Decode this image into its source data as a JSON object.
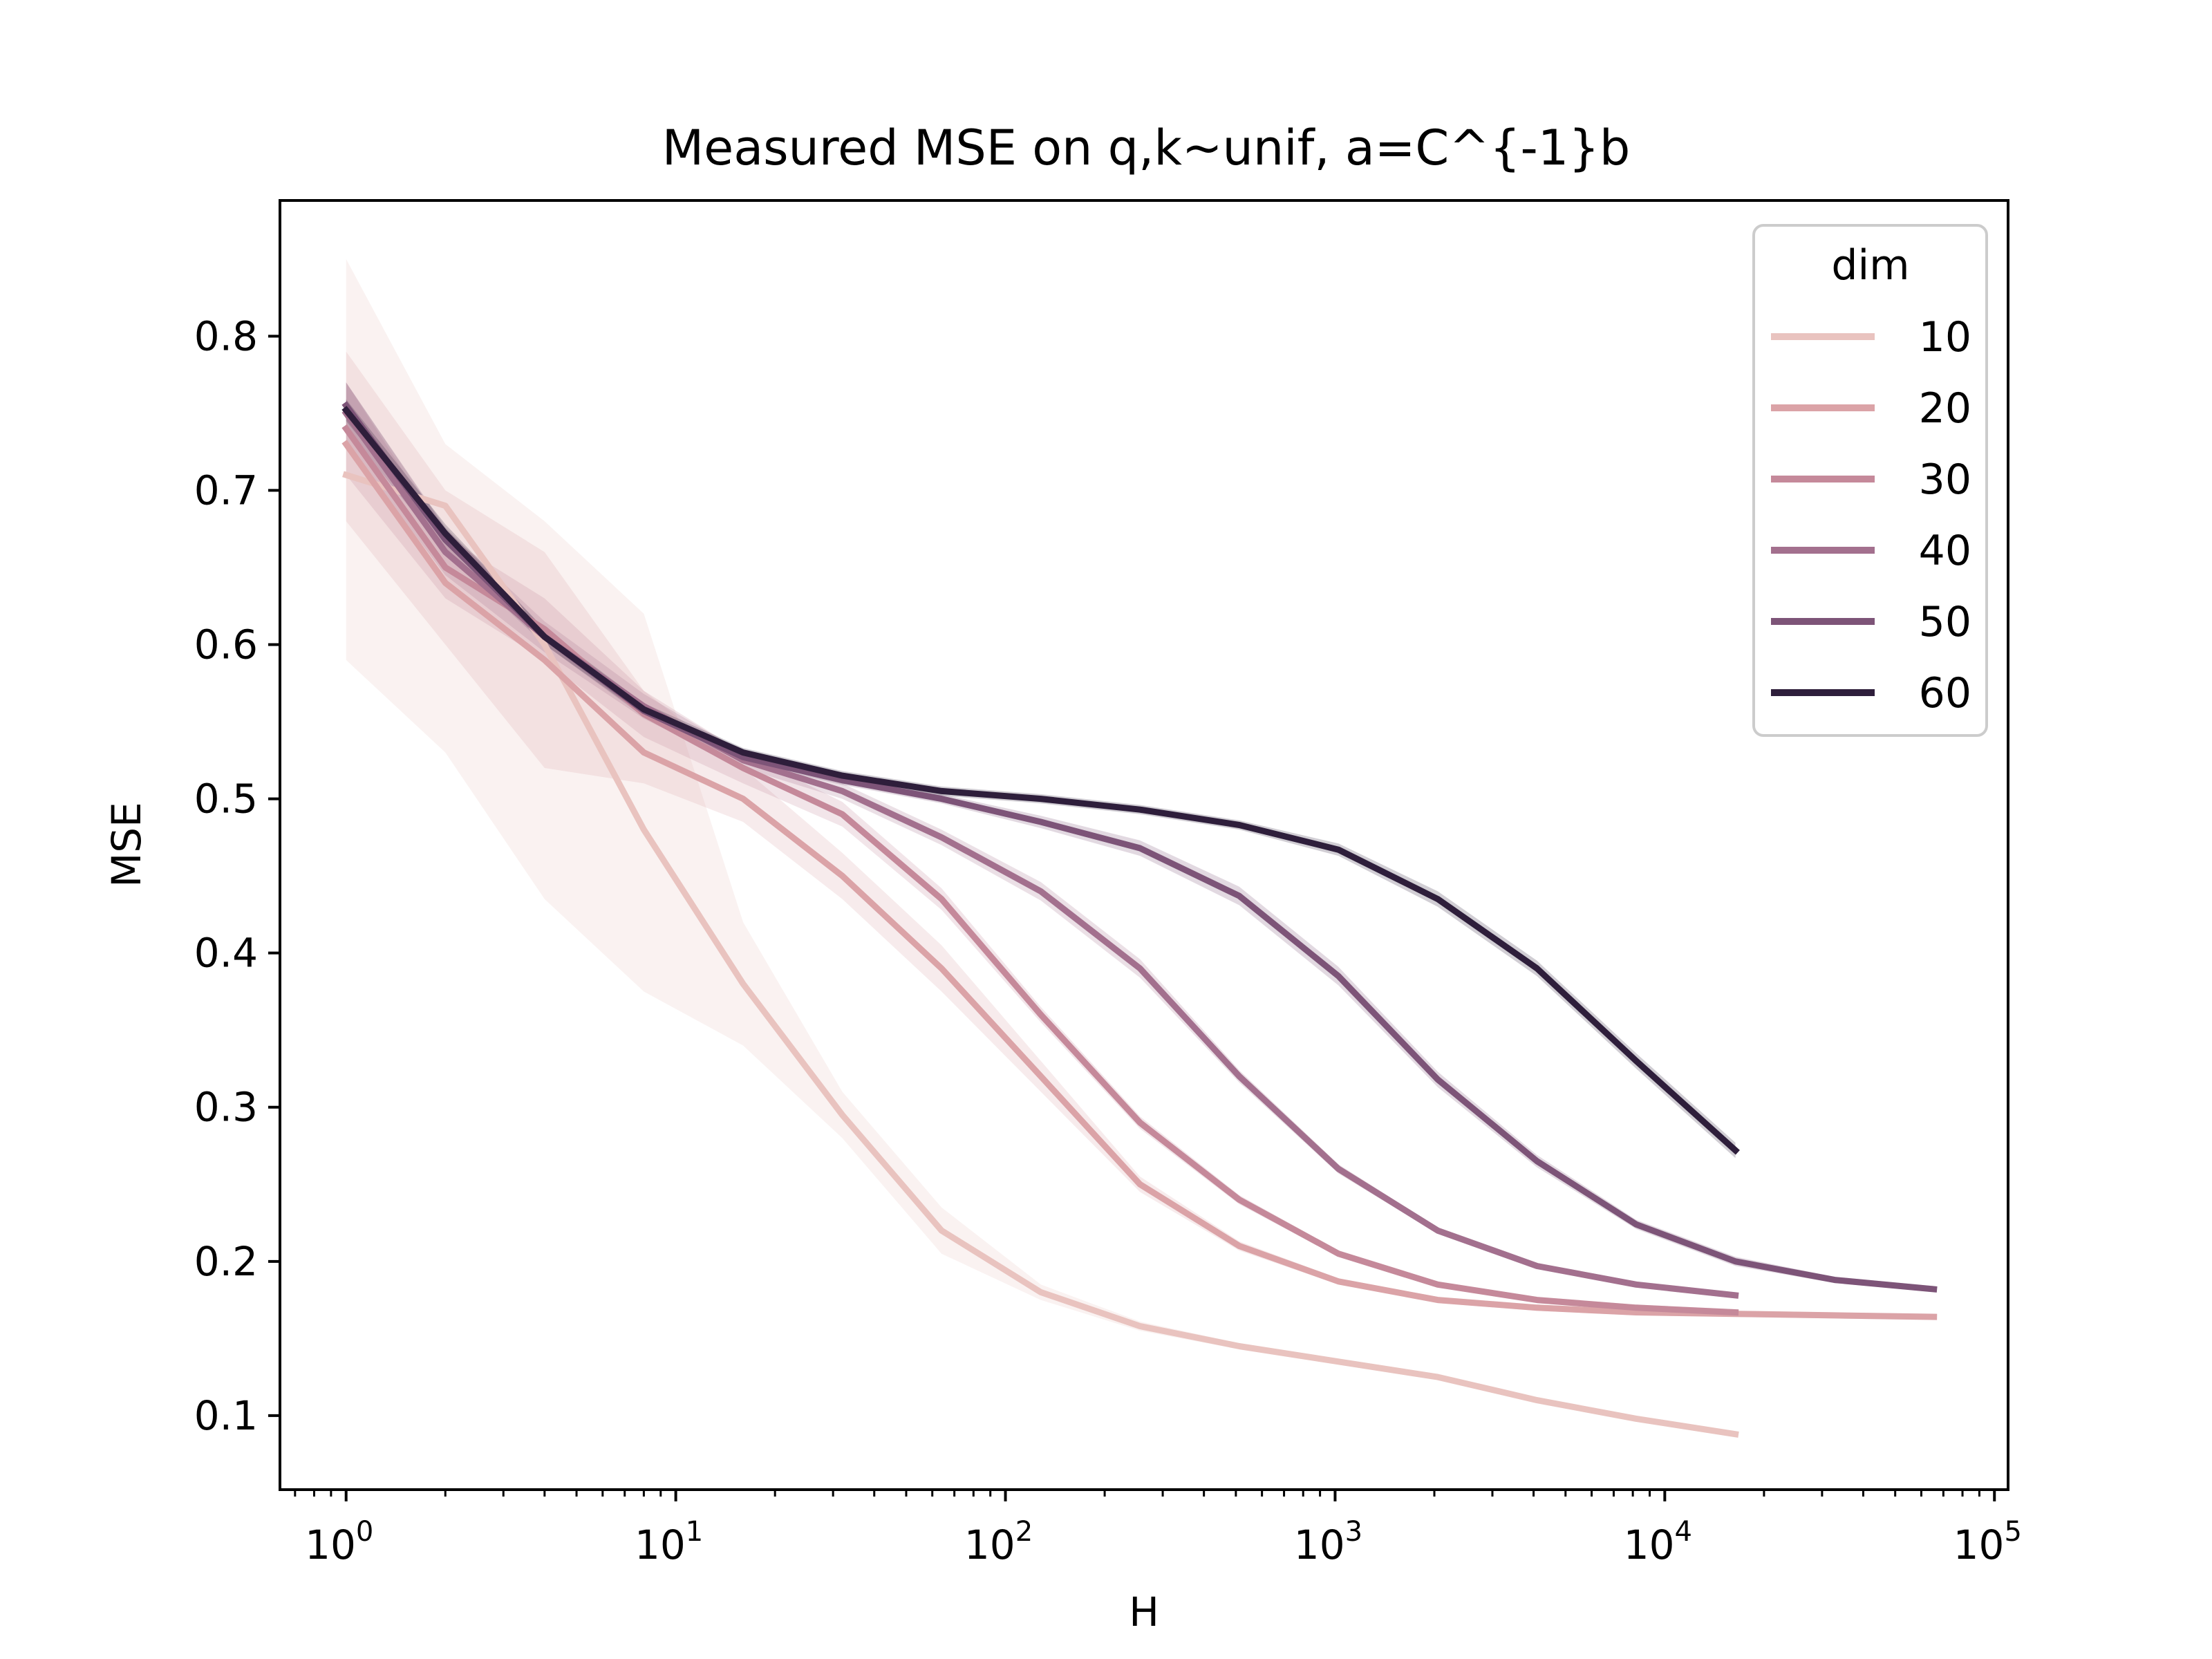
{
  "chart_data": {
    "type": "line",
    "title": "Measured MSE on q,k~unif, a=C^{-1}b",
    "xlabel": "H",
    "ylabel": "MSE",
    "xscale": "log",
    "xlim": [
      0.63,
      110000
    ],
    "ylim": [
      0.052,
      0.888
    ],
    "x_ticks": [
      {
        "base": "10",
        "exp": "0",
        "value": 1
      },
      {
        "base": "10",
        "exp": "1",
        "value": 10
      },
      {
        "base": "10",
        "exp": "2",
        "value": 100
      },
      {
        "base": "10",
        "exp": "3",
        "value": 1000
      },
      {
        "base": "10",
        "exp": "4",
        "value": 10000
      },
      {
        "base": "10",
        "exp": "5",
        "value": 100000
      }
    ],
    "y_ticks": [
      {
        "label": "0.1",
        "value": 0.1
      },
      {
        "label": "0.2",
        "value": 0.2
      },
      {
        "label": "0.3",
        "value": 0.3
      },
      {
        "label": "0.4",
        "value": 0.4
      },
      {
        "label": "0.5",
        "value": 0.5
      },
      {
        "label": "0.6",
        "value": 0.6
      },
      {
        "label": "0.7",
        "value": 0.7
      },
      {
        "label": "0.8",
        "value": 0.8
      }
    ],
    "legend": {
      "title": "dim",
      "placement": "top-right"
    },
    "grid": false,
    "series": [
      {
        "name": "10",
        "color": "#e9c3bf",
        "x": [
          1,
          2,
          4,
          8,
          16,
          32,
          64,
          128,
          256,
          512,
          1024,
          2048,
          4096,
          8192,
          16384
        ],
        "y": [
          0.71,
          0.69,
          0.6,
          0.48,
          0.38,
          0.295,
          0.22,
          0.18,
          0.158,
          0.145,
          0.135,
          0.125,
          0.11,
          0.098,
          0.088
        ],
        "lower": [
          0.59,
          0.53,
          0.435,
          0.375,
          0.34,
          0.28,
          0.205,
          0.175,
          0.155,
          0.143,
          0.133,
          0.123,
          0.108,
          0.096,
          0.086
        ],
        "upper": [
          0.85,
          0.73,
          0.68,
          0.62,
          0.42,
          0.31,
          0.235,
          0.185,
          0.161,
          0.147,
          0.137,
          0.127,
          0.112,
          0.1,
          0.09
        ]
      },
      {
        "name": "20",
        "color": "#dba3a7",
        "x": [
          1,
          2,
          4,
          8,
          16,
          32,
          64,
          128,
          256,
          512,
          1024,
          2048,
          4096,
          8192,
          16384,
          32768,
          65536
        ],
        "y": [
          0.73,
          0.64,
          0.59,
          0.53,
          0.5,
          0.45,
          0.39,
          0.32,
          0.25,
          0.21,
          0.187,
          0.175,
          0.17,
          0.167,
          0.166,
          0.165,
          0.164
        ],
        "lower": [
          0.68,
          0.6,
          0.52,
          0.51,
          0.485,
          0.435,
          0.375,
          0.31,
          0.245,
          0.207,
          0.185,
          0.173,
          0.168,
          0.165,
          0.164,
          0.163,
          0.162
        ],
        "upper": [
          0.79,
          0.7,
          0.66,
          0.57,
          0.52,
          0.465,
          0.405,
          0.33,
          0.255,
          0.213,
          0.189,
          0.177,
          0.172,
          0.169,
          0.168,
          0.167,
          0.166
        ]
      },
      {
        "name": "30",
        "color": "#c5899a",
        "x": [
          1,
          2,
          4,
          8,
          16,
          32,
          64,
          128,
          256,
          512,
          1024,
          2048,
          4096,
          8192,
          16384
        ],
        "y": [
          0.74,
          0.65,
          0.61,
          0.555,
          0.52,
          0.49,
          0.435,
          0.36,
          0.29,
          0.24,
          0.205,
          0.185,
          0.175,
          0.17,
          0.167
        ],
        "lower": [
          0.71,
          0.63,
          0.59,
          0.54,
          0.51,
          0.482,
          0.428,
          0.355,
          0.286,
          0.237,
          0.203,
          0.183,
          0.173,
          0.168,
          0.165
        ],
        "upper": [
          0.77,
          0.67,
          0.63,
          0.57,
          0.53,
          0.498,
          0.442,
          0.365,
          0.294,
          0.243,
          0.207,
          0.187,
          0.177,
          0.172,
          0.169
        ]
      },
      {
        "name": "40",
        "color": "#a3708e",
        "x": [
          1,
          2,
          4,
          8,
          16,
          32,
          64,
          128,
          256,
          512,
          1024,
          2048,
          4096,
          8192,
          16384
        ],
        "y": [
          0.75,
          0.66,
          0.605,
          0.56,
          0.525,
          0.505,
          0.475,
          0.44,
          0.39,
          0.32,
          0.26,
          0.22,
          0.197,
          0.185,
          0.178
        ],
        "lower": [
          0.73,
          0.645,
          0.595,
          0.552,
          0.52,
          0.5,
          0.47,
          0.434,
          0.384,
          0.316,
          0.257,
          0.218,
          0.195,
          0.183,
          0.176
        ],
        "upper": [
          0.77,
          0.675,
          0.615,
          0.568,
          0.53,
          0.51,
          0.48,
          0.446,
          0.396,
          0.324,
          0.263,
          0.222,
          0.199,
          0.187,
          0.18
        ]
      },
      {
        "name": "50",
        "color": "#7d5478",
        "x": [
          1,
          2,
          4,
          8,
          16,
          32,
          64,
          128,
          256,
          512,
          1024,
          2048,
          4096,
          8192,
          16384,
          32768,
          65536
        ],
        "y": [
          0.755,
          0.668,
          0.605,
          0.557,
          0.527,
          0.512,
          0.5,
          0.485,
          0.468,
          0.437,
          0.385,
          0.318,
          0.265,
          0.224,
          0.2,
          0.188,
          0.182
        ],
        "lower": [
          0.74,
          0.66,
          0.6,
          0.553,
          0.524,
          0.509,
          0.497,
          0.481,
          0.463,
          0.431,
          0.379,
          0.313,
          0.261,
          0.221,
          0.197,
          0.186,
          0.18
        ],
        "upper": [
          0.77,
          0.676,
          0.61,
          0.561,
          0.53,
          0.515,
          0.503,
          0.489,
          0.473,
          0.443,
          0.391,
          0.323,
          0.269,
          0.227,
          0.203,
          0.19,
          0.184
        ]
      },
      {
        "name": "60",
        "color": "#2e1e3b",
        "x": [
          1,
          2,
          4,
          8,
          16,
          32,
          64,
          128,
          256,
          512,
          1024,
          2048,
          4096,
          8192,
          16384
        ],
        "y": [
          0.752,
          0.672,
          0.605,
          0.558,
          0.53,
          0.515,
          0.505,
          0.5,
          0.493,
          0.483,
          0.467,
          0.435,
          0.39,
          0.33,
          0.272
        ],
        "lower": [
          0.745,
          0.666,
          0.6,
          0.554,
          0.527,
          0.512,
          0.502,
          0.497,
          0.49,
          0.48,
          0.463,
          0.43,
          0.385,
          0.325,
          0.267
        ],
        "upper": [
          0.759,
          0.678,
          0.61,
          0.562,
          0.533,
          0.518,
          0.508,
          0.503,
          0.496,
          0.486,
          0.471,
          0.44,
          0.395,
          0.335,
          0.277
        ]
      }
    ]
  }
}
